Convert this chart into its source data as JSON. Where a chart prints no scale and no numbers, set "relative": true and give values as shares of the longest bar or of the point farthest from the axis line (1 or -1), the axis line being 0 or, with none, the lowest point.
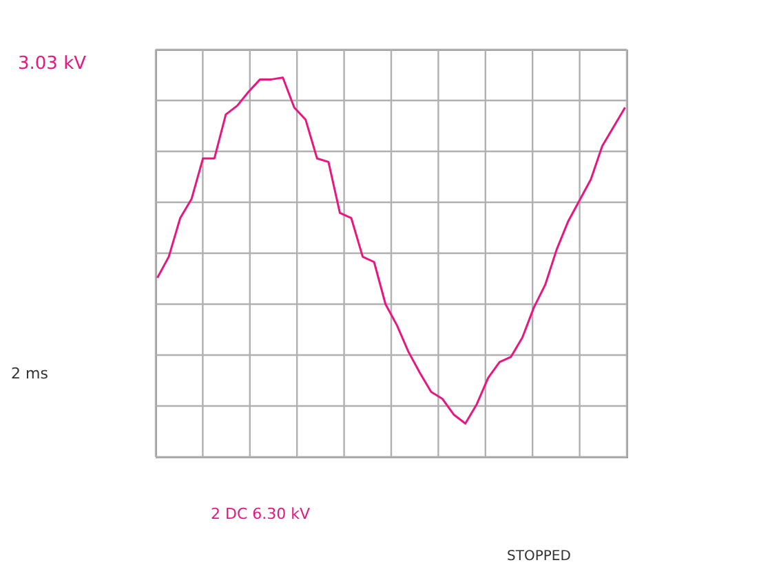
{
  "chart_data": {
    "type": "line",
    "relative": true,
    "grid": true,
    "tick_labels": false,
    "marker": "none",
    "line_style": "solid",
    "categories": [
      null,
      null,
      null,
      null,
      null,
      null,
      null,
      null,
      null,
      null,
      null,
      null,
      null,
      null,
      null,
      null,
      null,
      null,
      null,
      null,
      null,
      null,
      null,
      null,
      null,
      null,
      null,
      null,
      null,
      null,
      null,
      null,
      null,
      null,
      null,
      null,
      null,
      null,
      null,
      null,
      null,
      null
    ],
    "series": [
      {
        "color": "#e8177f",
        "values": [
          -0.14,
          -0.02,
          0.2,
          0.31,
          0.54,
          0.54,
          0.79,
          0.84,
          0.92,
          0.99,
          0.99,
          1.0,
          0.83,
          0.76,
          0.54,
          0.52,
          0.23,
          0.2,
          -0.02,
          -0.05,
          -0.29,
          -0.41,
          -0.56,
          -0.68,
          -0.79,
          -0.83,
          -0.92,
          -0.97,
          -0.86,
          -0.71,
          -0.62,
          -0.59,
          -0.48,
          -0.31,
          -0.18,
          0.02,
          0.18,
          0.3,
          0.42,
          0.61,
          0.72,
          0.83
        ]
      }
    ],
    "annotations": [
      "3.03 kV",
      "2 ms",
      "2 DC 6.30 kV",
      "STOPPED"
    ]
  }
}
